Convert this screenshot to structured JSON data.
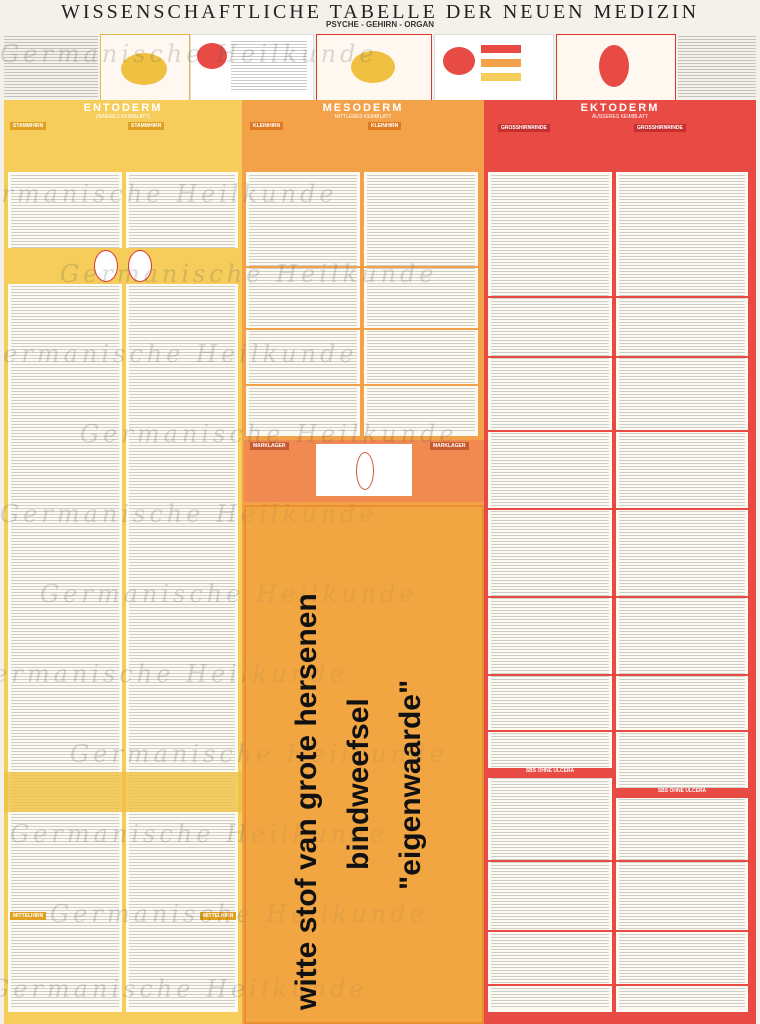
{
  "poster": {
    "title": "WISSENSCHAFTLICHE TABELLE DER NEUEN MEDIZIN",
    "subtitle": "PSYCHE - GEHIRN - ORGAN"
  },
  "zones": {
    "entoderm": {
      "title": "ENTODERM",
      "sub": "(INNERES KEIMBLATT)",
      "left_head": "STAMMHIRN",
      "right_head": "STAMMHIRN",
      "lower_left": "MITTELHIRN",
      "lower_right": "MITTELHIRN",
      "color": "#f6cd5a"
    },
    "mesoderm": {
      "title": "MESODERM",
      "sub": "MITTLERES KEIMBLATT",
      "left_head": "KLEINHIRN",
      "right_head": "KLEINHIRN",
      "mark_left": "MARKLAGER",
      "mark_right": "MARKLAGER",
      "color": "#f3a24a"
    },
    "ektoderm": {
      "title": "EKTODERM",
      "sub": "ÄUSSERES KEIMBLATT",
      "left_head": "GROSSHIRNRINDE",
      "right_head": "GROSSHIRNRINDE",
      "sbs_left": "SBS OHNE ULCERA",
      "sbs_right": "SBS OHNE ULCERA",
      "color": "#e84a44"
    }
  },
  "watermark": "Germanische Heilkunde",
  "overlay": {
    "line1": "witte stof van grote hersenen",
    "line2": "bindweefsel",
    "line3": "\"eigenwaarde\""
  }
}
